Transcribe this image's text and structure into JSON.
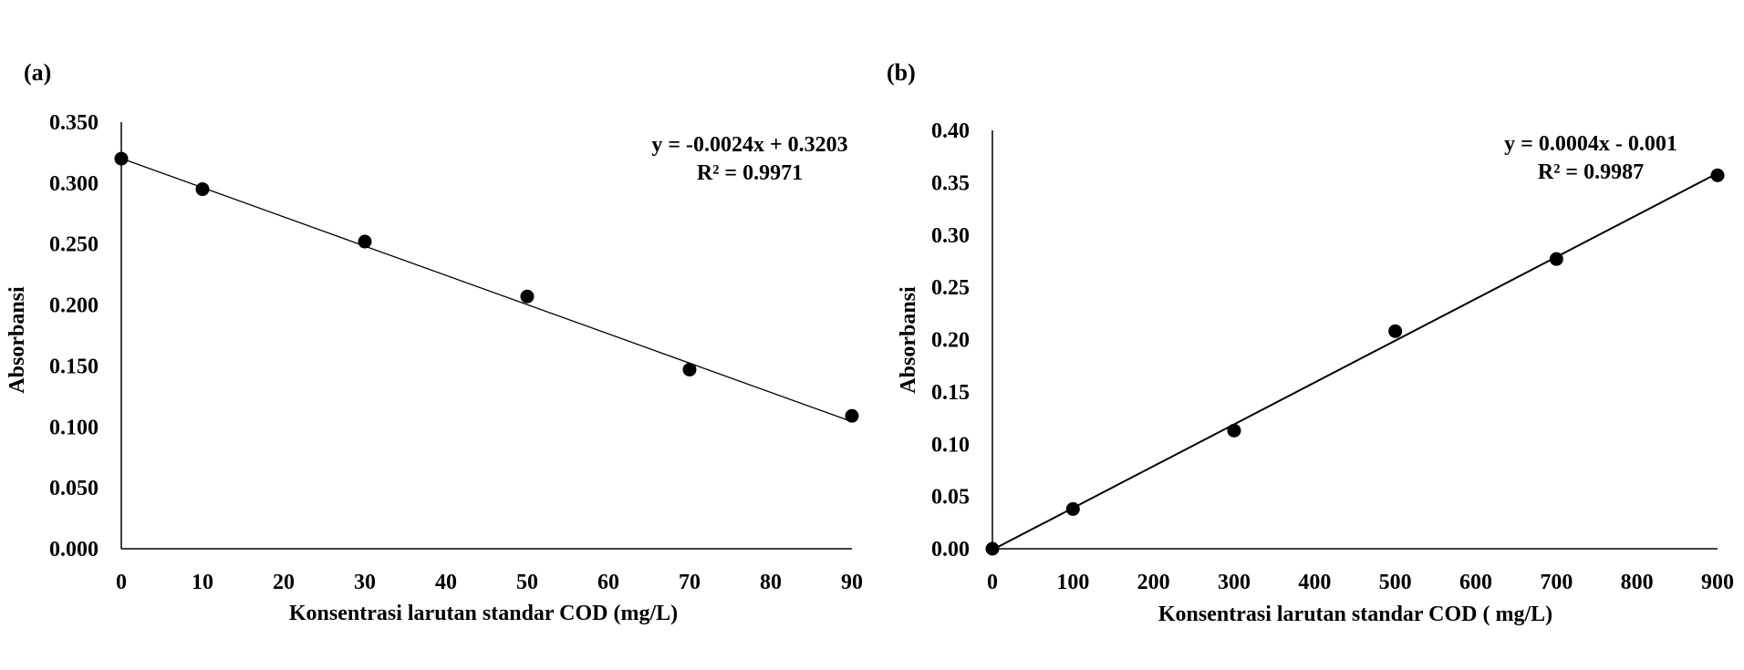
{
  "chart_data": [
    {
      "type": "scatter",
      "panel_label": "(a)",
      "x": [
        0,
        10,
        30,
        50,
        70,
        90
      ],
      "y": [
        0.32,
        0.295,
        0.252,
        0.207,
        0.147,
        0.109
      ],
      "xlim": [
        0,
        90
      ],
      "ylim": [
        0,
        0.35
      ],
      "xticks": [
        0,
        10,
        20,
        30,
        40,
        50,
        60,
        70,
        80,
        90
      ],
      "yticks": [
        0,
        0.05,
        0.1,
        0.15,
        0.2,
        0.25,
        0.3,
        0.35
      ],
      "xtick_labels": [
        "0",
        "10",
        "20",
        "30",
        "40",
        "50",
        "60",
        "70",
        "80",
        "90"
      ],
      "ytick_labels": [
        "0.000",
        "0.050",
        "0.100",
        "0.150",
        "0.200",
        "0.250",
        "0.300",
        "0.350"
      ],
      "xlabel": "Konsentrasi larutan standar COD (mg/L)",
      "ylabel": "Absorbansi",
      "trendline": {
        "slope": -0.0024,
        "intercept": 0.3203
      },
      "equation": "y = -0.0024x + 0.3203",
      "r_squared": "R² = 0.9971",
      "grid": false,
      "marker_color": "#000000",
      "line_color": "#000000"
    },
    {
      "type": "scatter",
      "panel_label": "(b)",
      "x": [
        0,
        100,
        300,
        500,
        700,
        900
      ],
      "y": [
        0.0,
        0.038,
        0.113,
        0.208,
        0.277,
        0.357
      ],
      "xlim": [
        0,
        900
      ],
      "ylim": [
        0,
        0.4
      ],
      "xticks": [
        0,
        100,
        200,
        300,
        400,
        500,
        600,
        700,
        800,
        900
      ],
      "yticks": [
        0,
        0.05,
        0.1,
        0.15,
        0.2,
        0.25,
        0.3,
        0.35,
        0.4
      ],
      "xtick_labels": [
        "0",
        "100",
        "200",
        "300",
        "400",
        "500",
        "600",
        "700",
        "800",
        "900"
      ],
      "ytick_labels": [
        "0.00",
        "0.05",
        "0.10",
        "0.15",
        "0.20",
        "0.25",
        "0.30",
        "0.35",
        "0.40"
      ],
      "xlabel": "Konsentrasi larutan standar COD ( mg/L)",
      "ylabel": "Absorbansi",
      "trendline": {
        "slope": 0.0004,
        "intercept": -0.001
      },
      "equation": "y = 0.0004x - 0.001",
      "r_squared": "R² = 0.9987",
      "grid": false,
      "marker_color": "#000000",
      "line_color": "#000000"
    }
  ]
}
